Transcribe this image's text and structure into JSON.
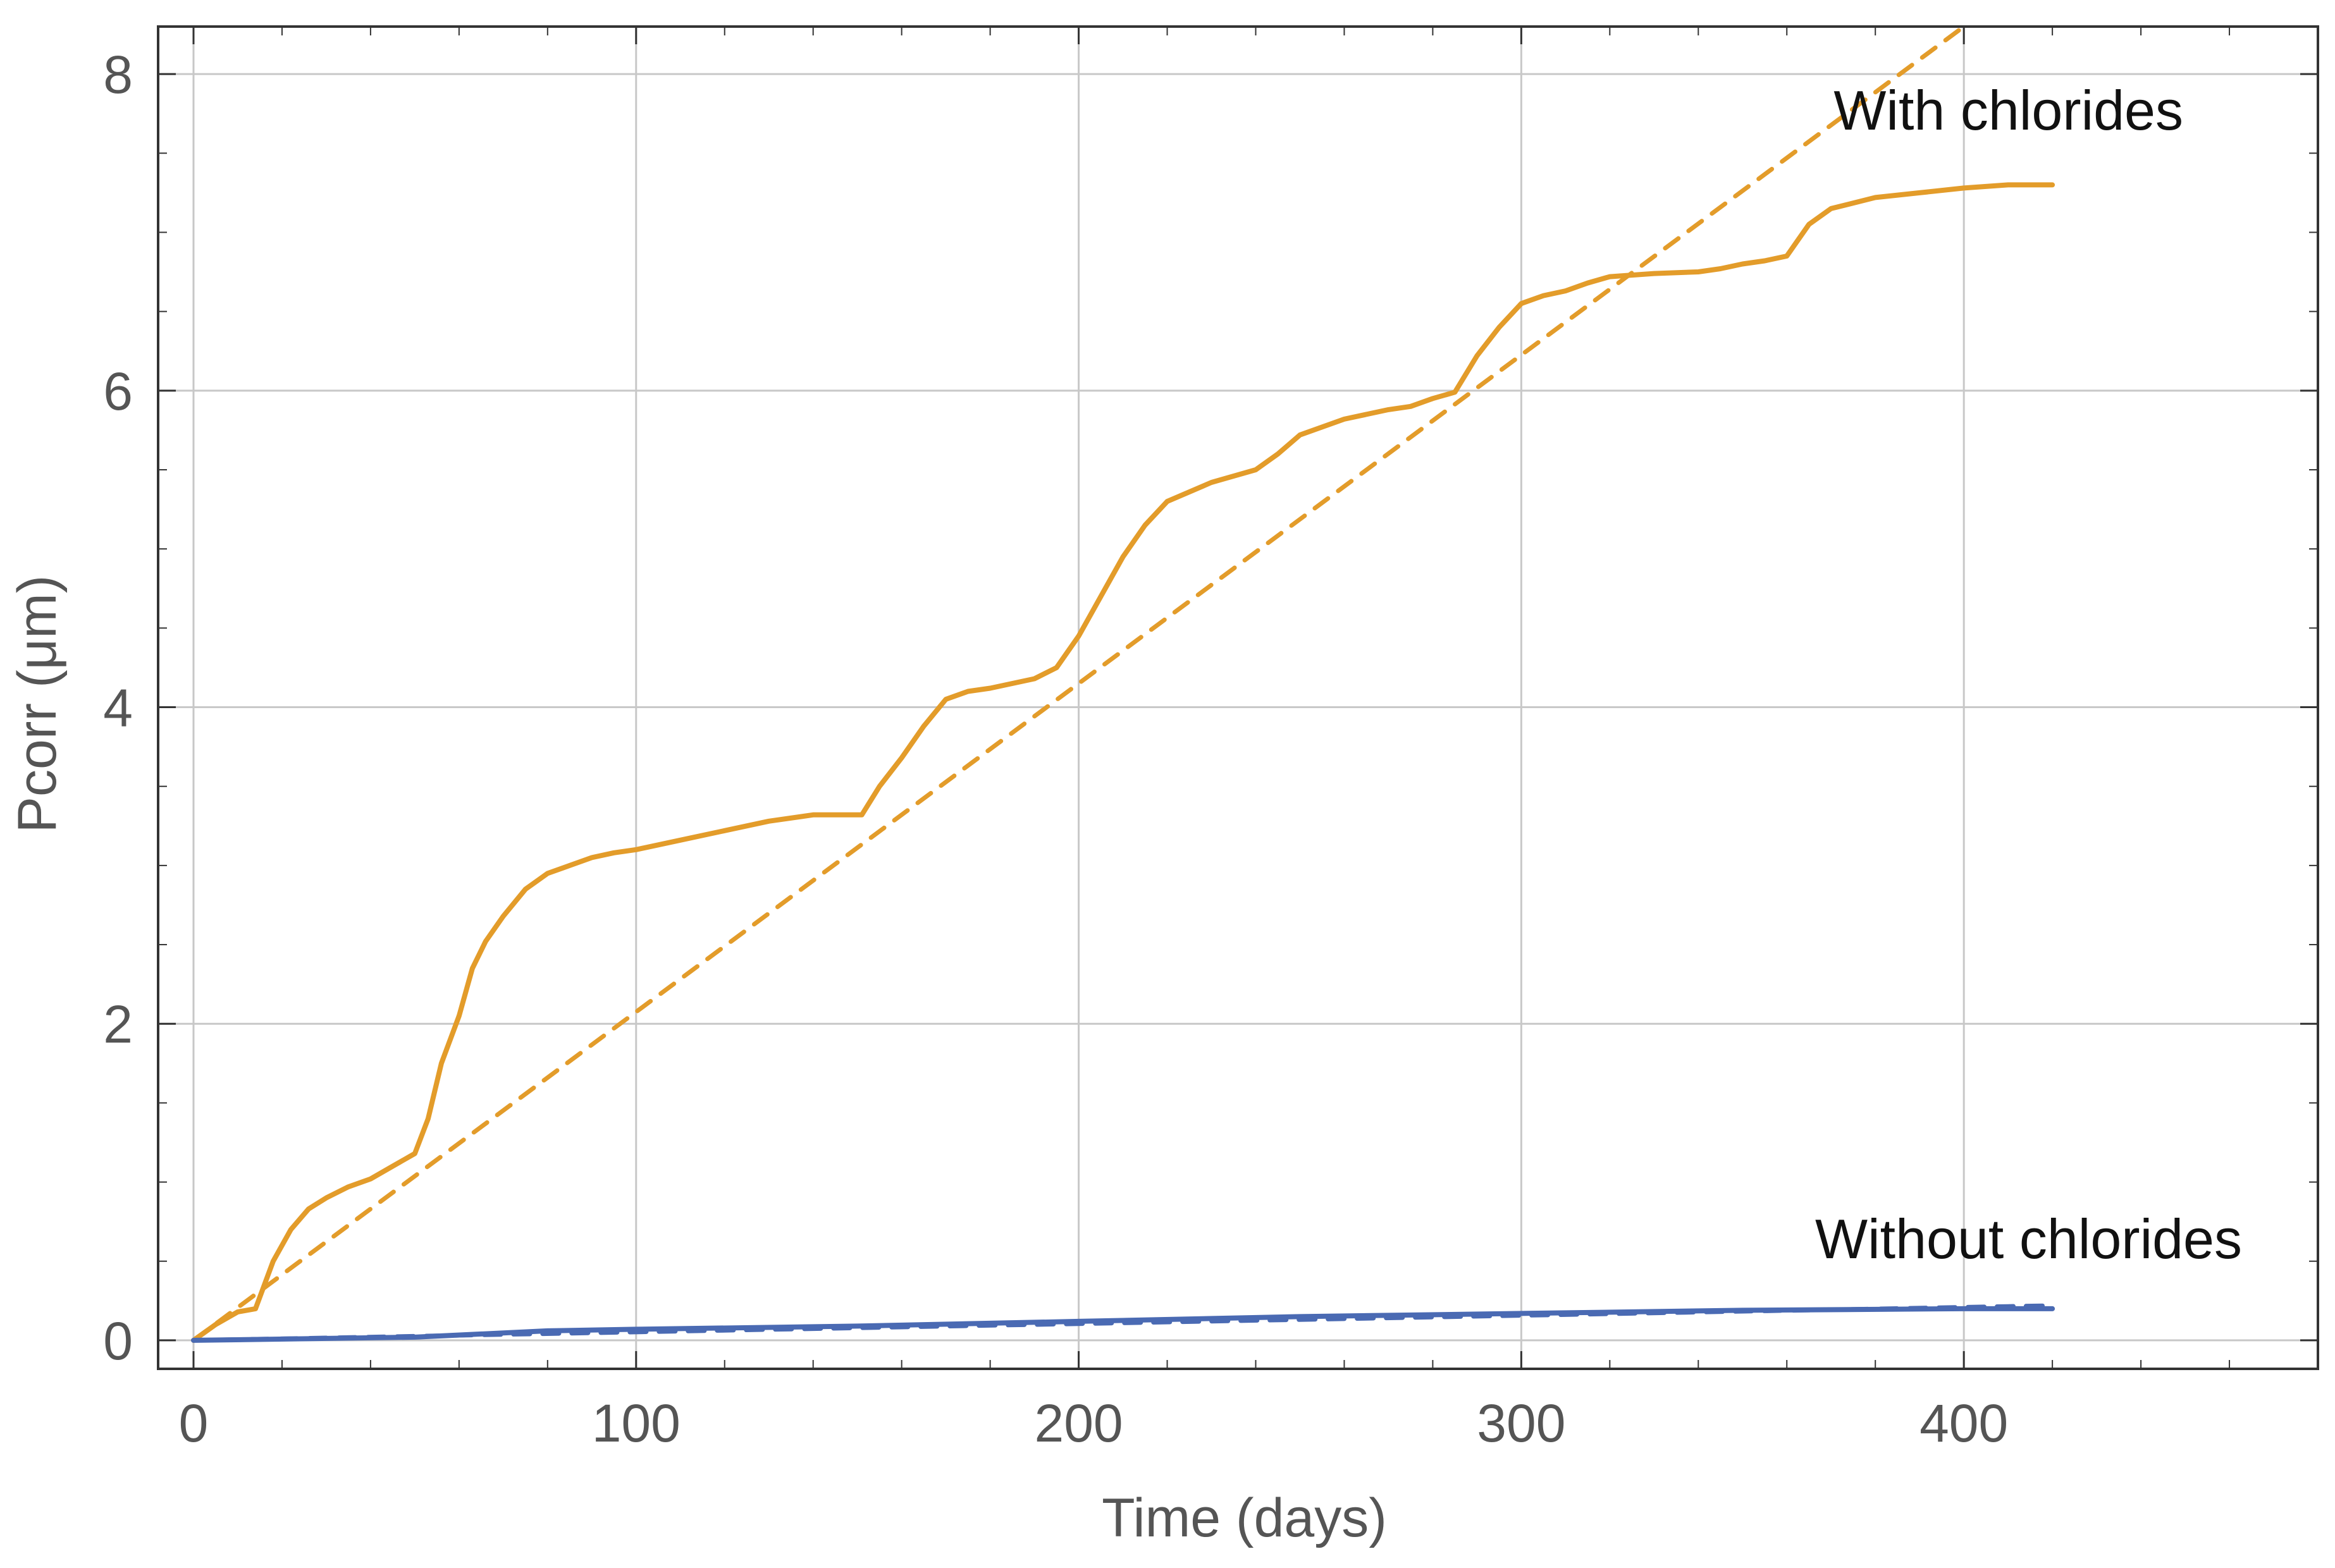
{
  "chart_data": {
    "type": "line",
    "title": "",
    "xlabel": "Time (days)",
    "ylabel": "Pcorr (μm)",
    "xlim": [
      -8,
      480
    ],
    "ylim": [
      -0.18,
      8.3
    ],
    "grid": true,
    "x_ticks": [
      0,
      100,
      200,
      300,
      400
    ],
    "y_ticks": [
      0,
      2,
      4,
      6,
      8
    ],
    "x_tick_labels": [
      "0",
      "100",
      "200",
      "300",
      "400"
    ],
    "y_tick_labels": [
      "0",
      "2",
      "4",
      "6",
      "8"
    ],
    "annotations": [
      "With chlorides",
      "Without chlorides"
    ],
    "colors": {
      "with_chlorides": "#e39c2a",
      "without_chlorides": "#4a6ab3",
      "grid": "#c8c8c8",
      "frame": "#333333"
    },
    "series": [
      {
        "style": "solid",
        "color": "#e39c2a",
        "x": [
          0,
          5,
          10,
          14,
          18,
          22,
          26,
          30,
          35,
          40,
          45,
          50,
          53,
          56,
          60,
          63,
          66,
          70,
          75,
          80,
          85,
          90,
          95,
          100,
          110,
          120,
          130,
          140,
          145,
          151,
          155,
          160,
          165,
          170,
          175,
          180,
          190,
          195,
          200,
          205,
          210,
          215,
          220,
          230,
          240,
          245,
          250,
          260,
          270,
          275,
          280,
          285,
          290,
          295,
          300,
          305,
          310,
          315,
          320,
          330,
          340,
          345,
          350,
          355,
          360,
          365,
          370,
          380,
          390,
          400,
          410,
          420
        ],
        "y": [
          0.0,
          0.1,
          0.18,
          0.2,
          0.5,
          0.7,
          0.83,
          0.9,
          0.97,
          1.02,
          1.1,
          1.18,
          1.4,
          1.75,
          2.05,
          2.35,
          2.52,
          2.68,
          2.85,
          2.95,
          3.0,
          3.05,
          3.08,
          3.1,
          3.16,
          3.22,
          3.28,
          3.32,
          3.32,
          3.32,
          3.5,
          3.68,
          3.88,
          4.05,
          4.1,
          4.12,
          4.18,
          4.25,
          4.45,
          4.7,
          4.95,
          5.15,
          5.3,
          5.42,
          5.5,
          5.6,
          5.72,
          5.82,
          5.88,
          5.9,
          5.95,
          5.99,
          6.22,
          6.4,
          6.55,
          6.6,
          6.63,
          6.68,
          6.72,
          6.74,
          6.75,
          6.77,
          6.8,
          6.82,
          6.85,
          7.05,
          7.15,
          7.22,
          7.25,
          7.28,
          7.3,
          7.3
        ]
      },
      {
        "style": "dashed",
        "color": "#e39c2a",
        "x": [
          0,
          400
        ],
        "y": [
          0.0,
          8.3
        ]
      },
      {
        "style": "solid",
        "color": "#4a6ab3",
        "x": [
          0,
          50,
          80,
          100,
          150,
          200,
          250,
          300,
          350,
          400,
          420
        ],
        "y": [
          0.0,
          0.02,
          0.06,
          0.07,
          0.09,
          0.12,
          0.15,
          0.17,
          0.19,
          0.2,
          0.2
        ]
      },
      {
        "style": "dashed",
        "color": "#4a6ab3",
        "x": [
          0,
          420
        ],
        "y": [
          0.0,
          0.22
        ]
      }
    ]
  }
}
